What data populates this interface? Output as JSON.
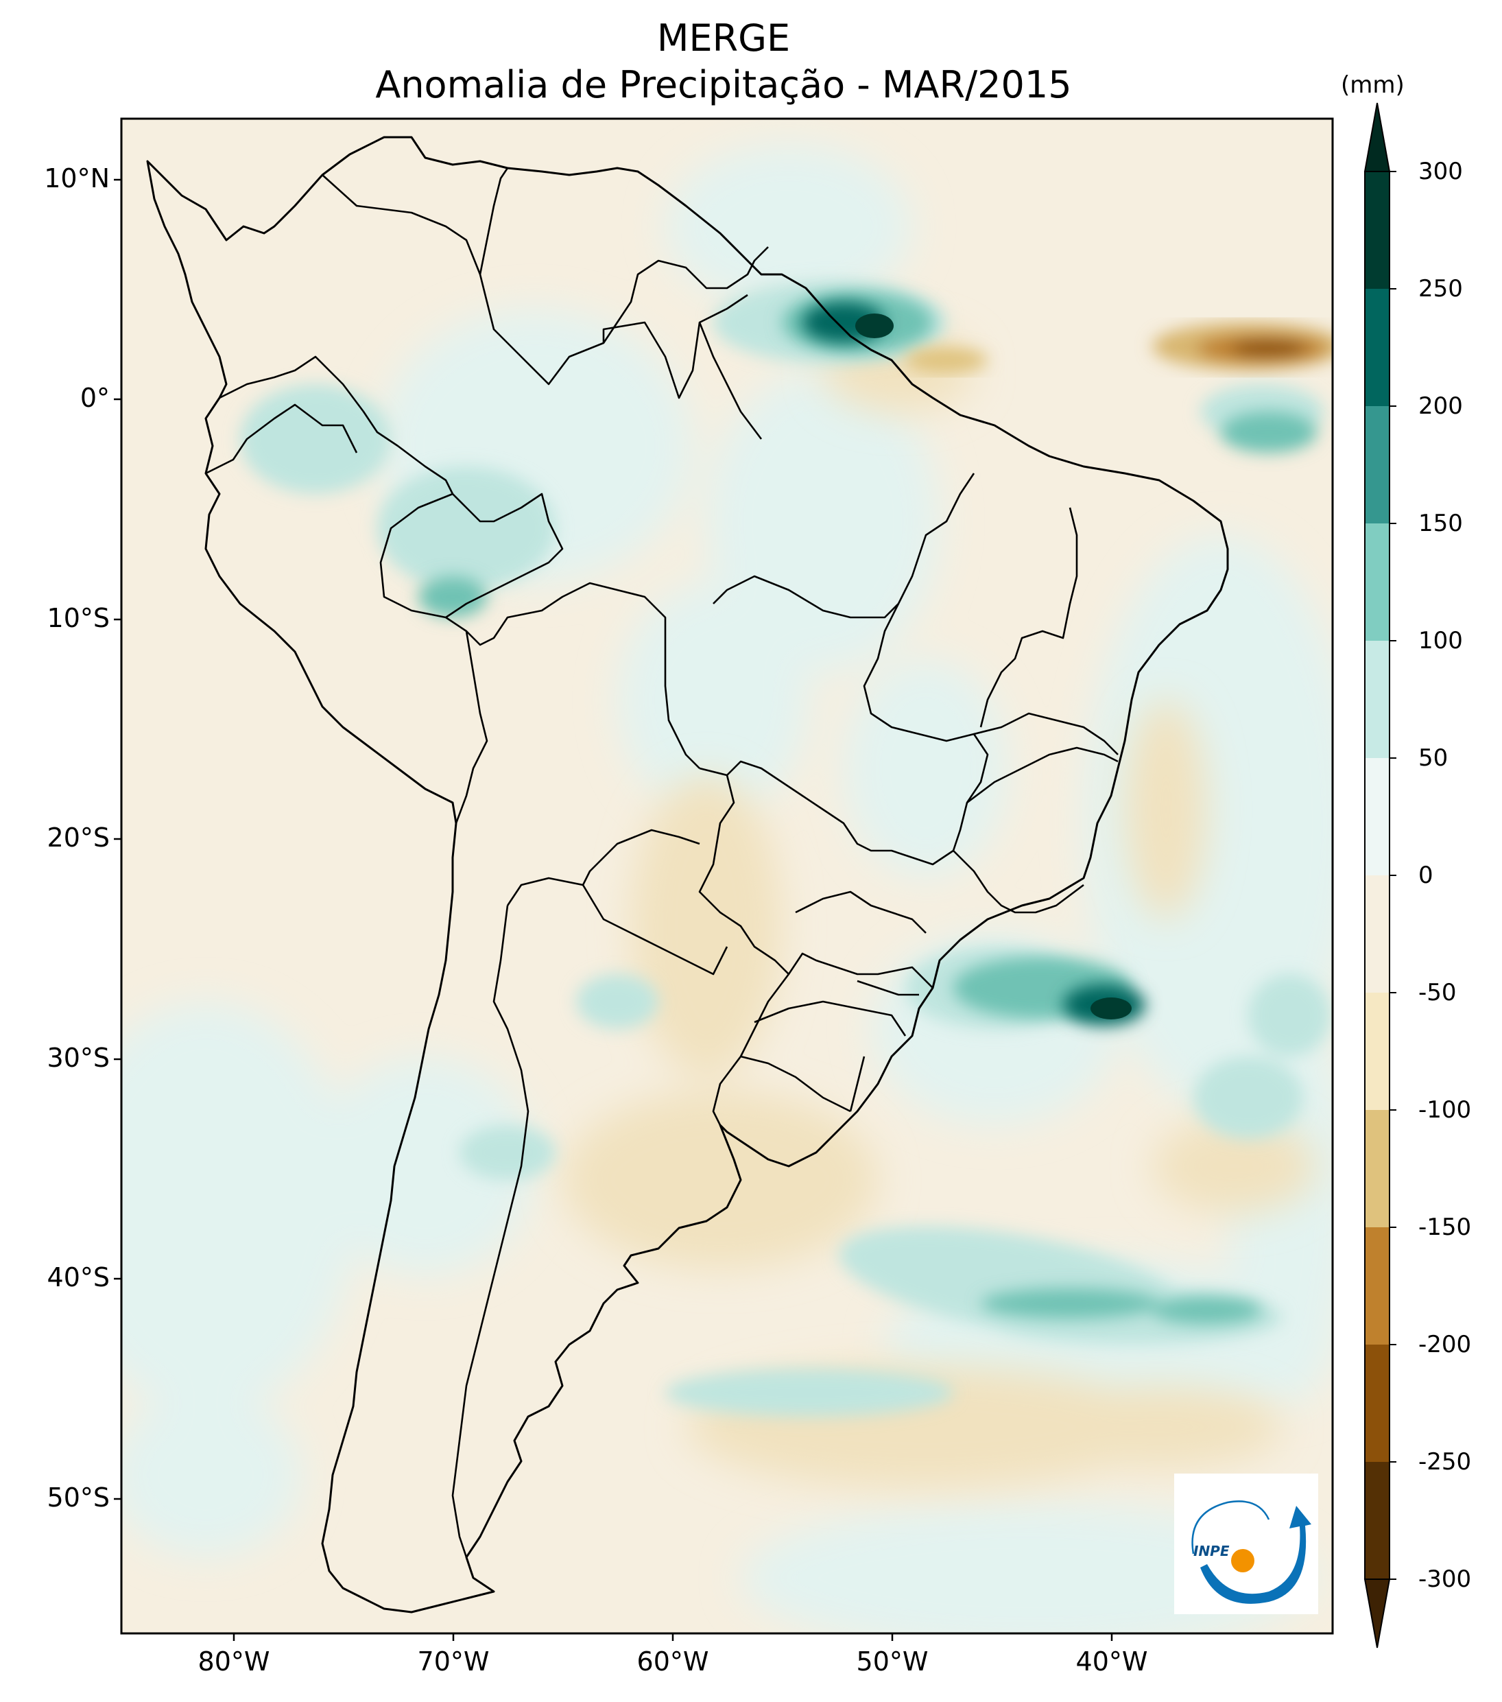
{
  "title": "MERGE",
  "subtitle": "Anomalia de Precipitação - MAR/2015",
  "colorbar": {
    "unit_label": "(mm)",
    "tick_labels": [
      "300",
      "250",
      "200",
      "150",
      "100",
      "50",
      "0",
      "-50",
      "-100",
      "-150",
      "-200",
      "-250",
      "-300"
    ],
    "colors_top_to_bottom": [
      "#003c30",
      "#01665e",
      "#35978f",
      "#80cdc1",
      "#c7eae5",
      "#eef7f5",
      "#f6efe0",
      "#f6e8c3",
      "#dfc27d",
      "#bf812d",
      "#8c510a",
      "#543005"
    ],
    "extend_max_color": "#002a20",
    "extend_min_color": "#3d2204"
  },
  "map": {
    "lat_labels": [
      "10°N",
      "0°",
      "10°S",
      "20°S",
      "30°S",
      "40°S",
      "50°S"
    ],
    "lon_labels": [
      "80°W",
      "70°W",
      "60°W",
      "50°W",
      "40°W"
    ],
    "ocean_color": "#f6efe0"
  },
  "logo": {
    "text": "INPE",
    "arrow_color": "#0a72b8",
    "dot_color": "#f39200"
  }
}
